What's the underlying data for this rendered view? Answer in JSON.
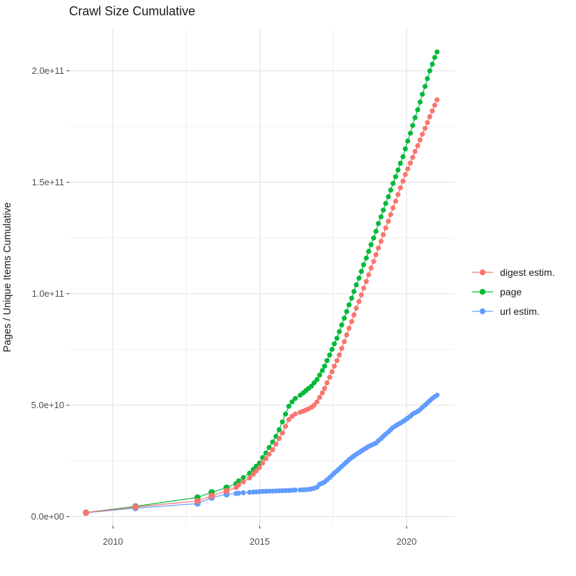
{
  "title": "Crawl Size Cumulative",
  "y_axis": {
    "title": "Pages / Unique Items Cumulative",
    "major_ticks": [
      {
        "label": "0.0e+00",
        "value_billion": 0
      },
      {
        "label": "5.0e+10",
        "value_billion": 50
      },
      {
        "label": "1.0e+11",
        "value_billion": 100
      },
      {
        "label": "1.5e+11",
        "value_billion": 150
      },
      {
        "label": "2.0e+11",
        "value_billion": 200
      }
    ],
    "minor_values_billion": [
      25,
      75,
      125,
      175
    ]
  },
  "x_axis": {
    "major_ticks": [
      {
        "label": "2010",
        "value": 2010
      },
      {
        "label": "2015",
        "value": 2015
      },
      {
        "label": "2020",
        "value": 2020
      }
    ],
    "minor_values": [
      2012.5,
      2017.5
    ]
  },
  "legend": {
    "items": [
      {
        "label": "digest estim.",
        "color": "#F8766D"
      },
      {
        "label": "page",
        "color": "#00BA38"
      },
      {
        "label": "url estim.",
        "color": "#619CFF"
      }
    ]
  },
  "chart_data": {
    "type": "scatter",
    "title": "Crawl Size Cumulative",
    "xlabel": "",
    "ylabel": "Pages / Unique Items Cumulative",
    "values_unit": "billions (1e9) of pages / unique items",
    "xlim": [
      2008.5,
      2021.65
    ],
    "ylim_billion": [
      0,
      219
    ],
    "grid": "major and minor, light gray on white",
    "legend_position": "right-center",
    "x": [
      2009.08,
      2010.77,
      2012.88,
      2013.36,
      2013.87,
      2014.19,
      2014.28,
      2014.44,
      2014.65,
      2014.78,
      2014.88,
      2014.99,
      2015.1,
      2015.21,
      2015.32,
      2015.44,
      2015.55,
      2015.66,
      2015.77,
      2015.88,
      2015.99,
      2016.1,
      2016.21,
      2016.38,
      2016.48,
      2016.57,
      2016.66,
      2016.76,
      2016.85,
      2016.95,
      2017.04,
      2017.13,
      2017.21,
      2017.29,
      2017.38,
      2017.46,
      2017.54,
      2017.63,
      2017.71,
      2017.79,
      2017.88,
      2017.96,
      2018.04,
      2018.13,
      2018.21,
      2018.29,
      2018.38,
      2018.46,
      2018.54,
      2018.63,
      2018.71,
      2018.79,
      2018.88,
      2018.96,
      2019.04,
      2019.13,
      2019.21,
      2019.29,
      2019.38,
      2019.46,
      2019.54,
      2019.63,
      2019.71,
      2019.79,
      2019.88,
      2019.96,
      2020.04,
      2020.13,
      2020.21,
      2020.29,
      2020.38,
      2020.46,
      2020.54,
      2020.63,
      2020.71,
      2020.79,
      2020.88,
      2020.96,
      2021.04
    ],
    "series": [
      {
        "name": "digest estim.",
        "color": "#F8766D",
        "values": [
          1.75,
          4.3,
          7,
          9.3,
          11.5,
          13,
          14.2,
          15.6,
          17.3,
          19,
          20.5,
          22,
          24,
          26,
          28,
          30,
          32.5,
          35,
          37.5,
          40.5,
          43.5,
          45,
          46,
          46.8,
          47.3,
          47.8,
          48.3,
          49,
          50,
          51.5,
          53.5,
          55.5,
          57.5,
          60,
          62.5,
          65,
          67.5,
          70,
          72.5,
          75.5,
          78.5,
          81.5,
          84.5,
          87.5,
          90.5,
          93.5,
          96.5,
          99.5,
          102.5,
          105.5,
          108.5,
          111.5,
          114.5,
          117.5,
          120.5,
          123.5,
          126.5,
          129.5,
          132.5,
          135.5,
          138.5,
          141.5,
          144.5,
          147.5,
          150.5,
          153.5,
          156,
          158.6,
          161.2,
          163.8,
          166.4,
          169,
          171.6,
          174.2,
          176.8,
          179.4,
          182,
          184.6,
          187
        ]
      },
      {
        "name": "page",
        "color": "#00BA38",
        "values": [
          1.8,
          4.6,
          8.6,
          10.9,
          13,
          14.8,
          16,
          17.5,
          19.5,
          21.2,
          22.6,
          24,
          26.5,
          28.5,
          31,
          33.5,
          36,
          39,
          42.5,
          46,
          49.5,
          51.5,
          53,
          54.5,
          55.5,
          56.5,
          57.5,
          58.5,
          60,
          61.5,
          63.5,
          65.5,
          67.5,
          70,
          72.5,
          75,
          77.5,
          80,
          83,
          86,
          89,
          92,
          95,
          98,
          101,
          104,
          107,
          110,
          113,
          116,
          119,
          122,
          125,
          128,
          131.5,
          134.5,
          137.5,
          140.5,
          143.5,
          146.5,
          149.5,
          152.5,
          155.5,
          158.5,
          161.5,
          165,
          168.5,
          172,
          175.5,
          179,
          182.5,
          186,
          189.5,
          193,
          196.5,
          200,
          203,
          206,
          208.5
        ]
      },
      {
        "name": "url estim.",
        "color": "#619CFF",
        "values": [
          1.7,
          3.8,
          5.8,
          8.5,
          10,
          10.3,
          10.5,
          10.7,
          10.9,
          11,
          11.1,
          11.2,
          11.3,
          11.35,
          11.4,
          11.45,
          11.5,
          11.55,
          11.6,
          11.65,
          11.7,
          11.8,
          11.9,
          12,
          12,
          12.1,
          12.2,
          12.4,
          12.7,
          13.2,
          14.5,
          15,
          15.5,
          16.5,
          17.5,
          18.5,
          19.5,
          20.5,
          21.5,
          22.5,
          23.5,
          24.5,
          25.5,
          26.5,
          27.2,
          28,
          28.7,
          29.4,
          30.1,
          30.8,
          31.5,
          32,
          32.5,
          33,
          34,
          35,
          36,
          37,
          38,
          39,
          40,
          40.7,
          41.4,
          42,
          42.7,
          43.4,
          44.2,
          45,
          46,
          46.6,
          47.2,
          48,
          49,
          50,
          51,
          52,
          53,
          53.8,
          54.5
        ]
      }
    ]
  },
  "style": {
    "panel_background": "#ffffff",
    "grid_major_color": "#e3e3e3",
    "grid_minor_color": "#f0f0f0",
    "tick_color": "#333333",
    "axis_text_color": "#4d4d4d",
    "text_color": "#1a1a1a"
  }
}
